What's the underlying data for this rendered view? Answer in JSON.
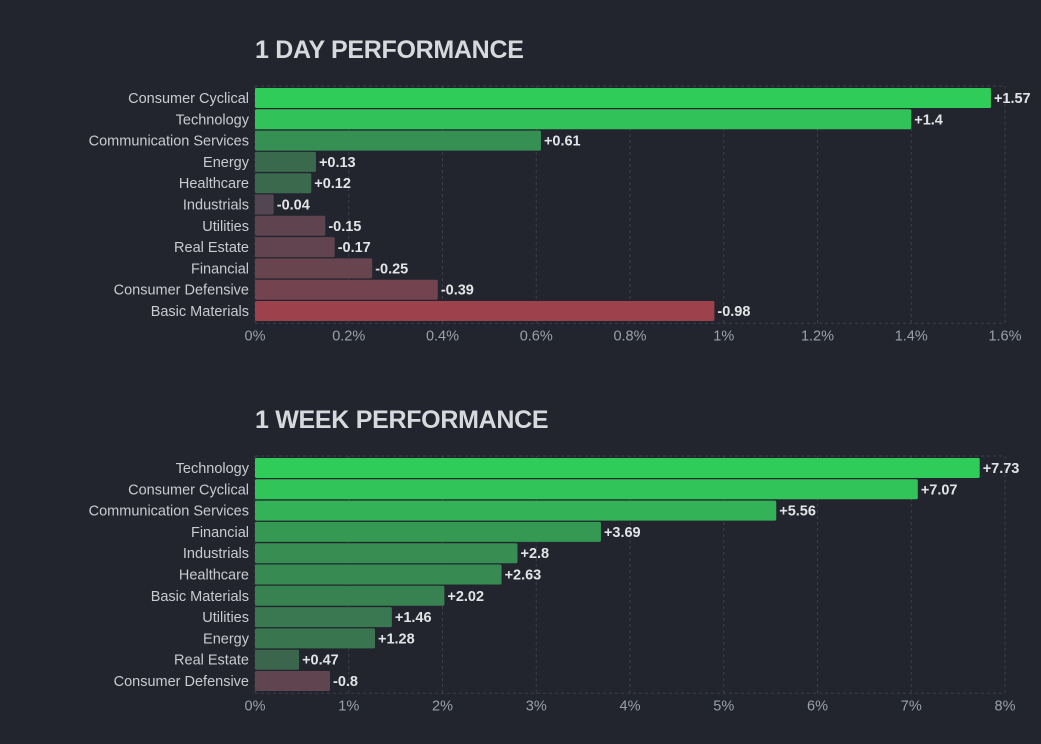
{
  "colors": {
    "background": "#22252e",
    "grid": "#3a3f4b",
    "tick": "#9aa0ab",
    "label": "#c9cbd1",
    "value": "#e2e3e6",
    "pos_strong": "#30cc5a",
    "pos_weak": "#3c5a4c",
    "neg_strong": "#c2404a",
    "neg_weak": "#4d4551"
  },
  "chart_data": [
    {
      "type": "bar",
      "orientation": "horizontal",
      "title": "1 DAY PERFORMANCE",
      "categories": [
        "Consumer Cyclical",
        "Technology",
        "Communication Services",
        "Energy",
        "Healthcare",
        "Industrials",
        "Utilities",
        "Real Estate",
        "Financial",
        "Consumer Defensive",
        "Basic Materials"
      ],
      "values": [
        1.57,
        1.4,
        0.61,
        0.13,
        0.12,
        -0.04,
        -0.15,
        -0.17,
        -0.25,
        -0.39,
        -0.98
      ],
      "value_labels": [
        "+1.57",
        "+1.4",
        "+0.61",
        "+0.13",
        "+0.12",
        "-0.04",
        "-0.15",
        "-0.17",
        "-0.25",
        "-0.39",
        "-0.98"
      ],
      "bar_length": "absolute value",
      "xlim": [
        0,
        1.6
      ],
      "xticks": [
        0,
        0.2,
        0.4,
        0.6,
        0.8,
        1,
        1.2,
        1.4,
        1.6
      ],
      "xtick_labels": [
        "0%",
        "0.2%",
        "0.4%",
        "0.6%",
        "0.8%",
        "1%",
        "1.2%",
        "1.4%",
        "1.6%"
      ],
      "grid": true
    },
    {
      "type": "bar",
      "orientation": "horizontal",
      "title": "1 WEEK PERFORMANCE",
      "categories": [
        "Technology",
        "Consumer Cyclical",
        "Communication Services",
        "Financial",
        "Industrials",
        "Healthcare",
        "Basic Materials",
        "Utilities",
        "Energy",
        "Real Estate",
        "Consumer Defensive"
      ],
      "values": [
        7.73,
        7.07,
        5.56,
        3.69,
        2.8,
        2.63,
        2.02,
        1.46,
        1.28,
        0.47,
        -0.8
      ],
      "value_labels": [
        "+7.73",
        "+7.07",
        "+5.56",
        "+3.69",
        "+2.8",
        "+2.63",
        "+2.02",
        "+1.46",
        "+1.28",
        "+0.47",
        "-0.8"
      ],
      "bar_length": "absolute value",
      "xlim": [
        0,
        8
      ],
      "xticks": [
        0,
        1,
        2,
        3,
        4,
        5,
        6,
        7,
        8
      ],
      "xtick_labels": [
        "0%",
        "1%",
        "2%",
        "3%",
        "4%",
        "5%",
        "6%",
        "7%",
        "8%"
      ],
      "grid": true
    }
  ]
}
